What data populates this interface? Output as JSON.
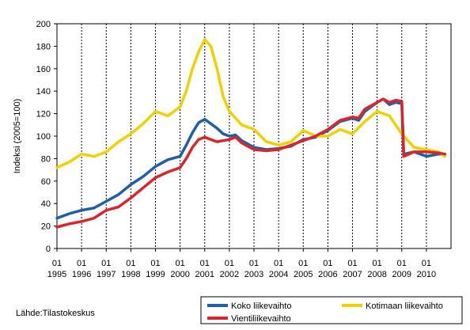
{
  "chart_data": {
    "type": "line",
    "title": "",
    "xlabel": "",
    "ylabel": "Indeksi (2005=100)",
    "ylim": [
      0,
      200
    ],
    "yticks": [
      0,
      20,
      40,
      60,
      80,
      100,
      120,
      140,
      160,
      180,
      200
    ],
    "x_start_year": 1995,
    "x_end_year": 2010,
    "x_tick_month_label": "01",
    "x_tick_years": [
      "1995",
      "1996",
      "1997",
      "1998",
      "1999",
      "2000",
      "2001",
      "2002",
      "2003",
      "2004",
      "2005",
      "2006",
      "2007",
      "2008",
      "2009",
      "2010"
    ],
    "grid": "vertical dashed at each year start",
    "legend_position": "bottom-right",
    "series": [
      {
        "name": "Koko liikevaihto",
        "color": "#1f5fa6",
        "points": [
          [
            "1995-01",
            27
          ],
          [
            "1995-07",
            31
          ],
          [
            "1996-01",
            34
          ],
          [
            "1996-07",
            36
          ],
          [
            "1997-01",
            42
          ],
          [
            "1997-07",
            48
          ],
          [
            "1998-01",
            57
          ],
          [
            "1998-07",
            64
          ],
          [
            "1999-01",
            73
          ],
          [
            "1999-07",
            79
          ],
          [
            "2000-01",
            82
          ],
          [
            "2000-04",
            92
          ],
          [
            "2000-07",
            103
          ],
          [
            "2000-10",
            112
          ],
          [
            "2001-01",
            115
          ],
          [
            "2001-04",
            111
          ],
          [
            "2001-07",
            107
          ],
          [
            "2001-10",
            102
          ],
          [
            "2002-01",
            100
          ],
          [
            "2002-04",
            101
          ],
          [
            "2002-07",
            96
          ],
          [
            "2002-10",
            93
          ],
          [
            "2003-01",
            90
          ],
          [
            "2003-07",
            88
          ],
          [
            "2004-01",
            89
          ],
          [
            "2004-07",
            91
          ],
          [
            "2005-01",
            97
          ],
          [
            "2005-07",
            99
          ],
          [
            "2006-01",
            105
          ],
          [
            "2006-07",
            113
          ],
          [
            "2007-01",
            116
          ],
          [
            "2007-04",
            114
          ],
          [
            "2007-07",
            122
          ],
          [
            "2008-01",
            130
          ],
          [
            "2008-04",
            133
          ],
          [
            "2008-07",
            128
          ],
          [
            "2008-10",
            130
          ],
          [
            "2009-01",
            129
          ],
          [
            "2009-02",
            84
          ],
          [
            "2009-07",
            86
          ],
          [
            "2010-01",
            82
          ],
          [
            "2010-07",
            84
          ],
          [
            "2010-10",
            84
          ]
        ]
      },
      {
        "name": "Kotimaan liikevaihto",
        "color": "#f0d000",
        "points": [
          [
            "1995-01",
            72
          ],
          [
            "1995-07",
            77
          ],
          [
            "1996-01",
            84
          ],
          [
            "1996-07",
            82
          ],
          [
            "1997-01",
            86
          ],
          [
            "1997-07",
            95
          ],
          [
            "1998-01",
            102
          ],
          [
            "1998-07",
            111
          ],
          [
            "1999-01",
            122
          ],
          [
            "1999-07",
            118
          ],
          [
            "2000-01",
            126
          ],
          [
            "2000-04",
            140
          ],
          [
            "2000-07",
            160
          ],
          [
            "2000-10",
            175
          ],
          [
            "2001-01",
            186
          ],
          [
            "2001-04",
            180
          ],
          [
            "2001-07",
            160
          ],
          [
            "2001-10",
            135
          ],
          [
            "2002-01",
            122
          ],
          [
            "2002-07",
            110
          ],
          [
            "2003-01",
            106
          ],
          [
            "2003-07",
            95
          ],
          [
            "2004-01",
            92
          ],
          [
            "2004-07",
            95
          ],
          [
            "2005-01",
            105
          ],
          [
            "2005-07",
            100
          ],
          [
            "2006-01",
            100
          ],
          [
            "2006-07",
            106
          ],
          [
            "2007-01",
            102
          ],
          [
            "2007-07",
            113
          ],
          [
            "2008-01",
            122
          ],
          [
            "2008-07",
            118
          ],
          [
            "2009-01",
            102
          ],
          [
            "2009-07",
            90
          ],
          [
            "2010-01",
            88
          ],
          [
            "2010-07",
            86
          ],
          [
            "2010-10",
            82
          ]
        ]
      },
      {
        "name": "Vientiliikevaihto",
        "color": "#d8262c",
        "points": [
          [
            "1995-01",
            19
          ],
          [
            "1995-07",
            22
          ],
          [
            "1996-01",
            24
          ],
          [
            "1996-07",
            27
          ],
          [
            "1997-01",
            34
          ],
          [
            "1997-07",
            37
          ],
          [
            "1998-01",
            45
          ],
          [
            "1998-07",
            54
          ],
          [
            "1999-01",
            63
          ],
          [
            "1999-07",
            68
          ],
          [
            "2000-01",
            72
          ],
          [
            "2000-04",
            80
          ],
          [
            "2000-07",
            90
          ],
          [
            "2000-10",
            97
          ],
          [
            "2001-01",
            99
          ],
          [
            "2001-04",
            97
          ],
          [
            "2001-07",
            95
          ],
          [
            "2001-10",
            96
          ],
          [
            "2002-01",
            97
          ],
          [
            "2002-04",
            99
          ],
          [
            "2002-07",
            94
          ],
          [
            "2002-10",
            91
          ],
          [
            "2003-01",
            88
          ],
          [
            "2003-07",
            87
          ],
          [
            "2004-01",
            88
          ],
          [
            "2004-07",
            92
          ],
          [
            "2005-01",
            96
          ],
          [
            "2005-07",
            100
          ],
          [
            "2006-01",
            106
          ],
          [
            "2006-07",
            114
          ],
          [
            "2007-01",
            117
          ],
          [
            "2007-04",
            116
          ],
          [
            "2007-07",
            124
          ],
          [
            "2008-01",
            130
          ],
          [
            "2008-04",
            133
          ],
          [
            "2008-07",
            130
          ],
          [
            "2008-10",
            132
          ],
          [
            "2009-01",
            131
          ],
          [
            "2009-02",
            82
          ],
          [
            "2009-07",
            86
          ],
          [
            "2010-01",
            86
          ],
          [
            "2010-07",
            85
          ],
          [
            "2010-10",
            84
          ]
        ]
      }
    ]
  },
  "source": "Lähde:Tilastokeskus"
}
